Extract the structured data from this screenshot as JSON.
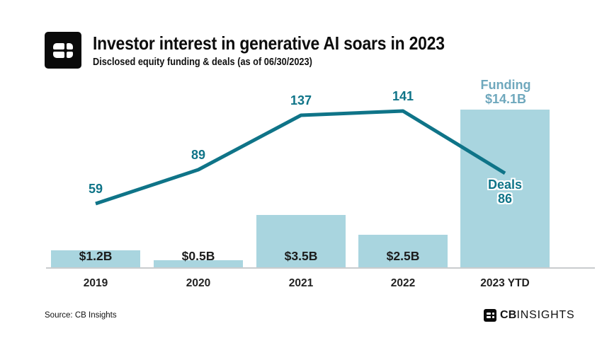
{
  "header": {
    "title": "Investor interest in generative AI soars in 2023",
    "subtitle": "Disclosed equity funding & deals (as of 06/30/2023)"
  },
  "chart_data": {
    "type": "bar+line combo",
    "categories": [
      "2019",
      "2020",
      "2021",
      "2022",
      "2023 YTD"
    ],
    "series": [
      {
        "name": "Funding",
        "type": "bar",
        "unit": "USD billions",
        "values": [
          1.2,
          0.5,
          3.5,
          2.5,
          14.1
        ],
        "labels": [
          "$1.2B",
          "$0.5B",
          "$3.5B",
          "$2.5B",
          "$14.1B"
        ]
      },
      {
        "name": "Deals",
        "type": "line",
        "values": [
          59,
          89,
          137,
          141,
          86
        ],
        "labels": [
          "59",
          "89",
          "137",
          "141",
          "86"
        ]
      }
    ],
    "annotations": {
      "funding_title": "Funding",
      "funding_value": "$14.1B",
      "deals_title": "Deals",
      "deals_value": "86"
    },
    "grid": false,
    "legend_position": "none",
    "x_axis_line": true
  },
  "footer": {
    "source": "Source: CB Insights",
    "brand_cb": "CB",
    "brand_insights": "INSIGHTS"
  },
  "colors": {
    "bar_fill": "#A9D5DF",
    "line": "#0F7488",
    "funding_label": "#6FA8BD",
    "axis_line": "#C9CCCE",
    "text_dark": "#1A1A1A"
  }
}
